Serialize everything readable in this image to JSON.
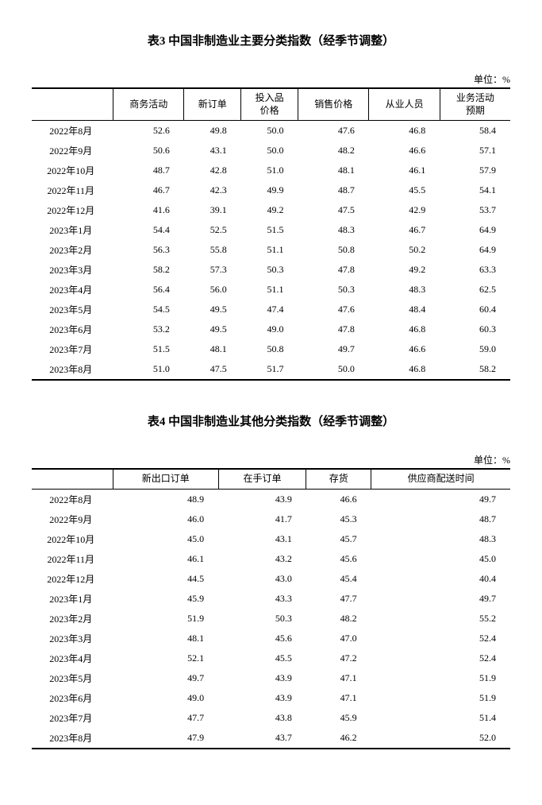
{
  "table3": {
    "caption": "表3 中国非制造业主要分类指数（经季节调整）",
    "unit": "单位：%",
    "columns": [
      "商务活动",
      "新订单",
      "投入品\n价格",
      "销售价格",
      "从业人员",
      "业务活动\n预期"
    ],
    "rows": [
      {
        "label": "2022年8月",
        "v": [
          "52.6",
          "49.8",
          "50.0",
          "47.6",
          "46.8",
          "58.4"
        ]
      },
      {
        "label": "2022年9月",
        "v": [
          "50.6",
          "43.1",
          "50.0",
          "48.2",
          "46.6",
          "57.1"
        ]
      },
      {
        "label": "2022年10月",
        "v": [
          "48.7",
          "42.8",
          "51.0",
          "48.1",
          "46.1",
          "57.9"
        ]
      },
      {
        "label": "2022年11月",
        "v": [
          "46.7",
          "42.3",
          "49.9",
          "48.7",
          "45.5",
          "54.1"
        ]
      },
      {
        "label": "2022年12月",
        "v": [
          "41.6",
          "39.1",
          "49.2",
          "47.5",
          "42.9",
          "53.7"
        ]
      },
      {
        "label": "2023年1月",
        "v": [
          "54.4",
          "52.5",
          "51.5",
          "48.3",
          "46.7",
          "64.9"
        ]
      },
      {
        "label": "2023年2月",
        "v": [
          "56.3",
          "55.8",
          "51.1",
          "50.8",
          "50.2",
          "64.9"
        ]
      },
      {
        "label": "2023年3月",
        "v": [
          "58.2",
          "57.3",
          "50.3",
          "47.8",
          "49.2",
          "63.3"
        ]
      },
      {
        "label": "2023年4月",
        "v": [
          "56.4",
          "56.0",
          "51.1",
          "50.3",
          "48.3",
          "62.5"
        ]
      },
      {
        "label": "2023年5月",
        "v": [
          "54.5",
          "49.5",
          "47.4",
          "47.6",
          "48.4",
          "60.4"
        ]
      },
      {
        "label": "2023年6月",
        "v": [
          "53.2",
          "49.5",
          "49.0",
          "47.8",
          "46.8",
          "60.3"
        ]
      },
      {
        "label": "2023年7月",
        "v": [
          "51.5",
          "48.1",
          "50.8",
          "49.7",
          "46.6",
          "59.0"
        ]
      },
      {
        "label": "2023年8月",
        "v": [
          "51.0",
          "47.5",
          "51.7",
          "50.0",
          "46.8",
          "58.2"
        ]
      }
    ]
  },
  "table4": {
    "caption": "表4 中国非制造业其他分类指数（经季节调整）",
    "unit": "单位：%",
    "columns": [
      "新出口订单",
      "在手订单",
      "存货",
      "供应商配送时间"
    ],
    "rows": [
      {
        "label": "2022年8月",
        "v": [
          "48.9",
          "43.9",
          "46.6",
          "49.7"
        ]
      },
      {
        "label": "2022年9月",
        "v": [
          "46.0",
          "41.7",
          "45.3",
          "48.7"
        ]
      },
      {
        "label": "2022年10月",
        "v": [
          "45.0",
          "43.1",
          "45.7",
          "48.3"
        ]
      },
      {
        "label": "2022年11月",
        "v": [
          "46.1",
          "43.2",
          "45.6",
          "45.0"
        ]
      },
      {
        "label": "2022年12月",
        "v": [
          "44.5",
          "43.0",
          "45.4",
          "40.4"
        ]
      },
      {
        "label": "2023年1月",
        "v": [
          "45.9",
          "43.3",
          "47.7",
          "49.7"
        ]
      },
      {
        "label": "2023年2月",
        "v": [
          "51.9",
          "50.3",
          "48.2",
          "55.2"
        ]
      },
      {
        "label": "2023年3月",
        "v": [
          "48.1",
          "45.6",
          "47.0",
          "52.4"
        ]
      },
      {
        "label": "2023年4月",
        "v": [
          "52.1",
          "45.5",
          "47.2",
          "52.4"
        ]
      },
      {
        "label": "2023年5月",
        "v": [
          "49.7",
          "43.9",
          "47.1",
          "51.9"
        ]
      },
      {
        "label": "2023年6月",
        "v": [
          "49.0",
          "43.9",
          "47.1",
          "51.9"
        ]
      },
      {
        "label": "2023年7月",
        "v": [
          "47.7",
          "43.8",
          "45.9",
          "51.4"
        ]
      },
      {
        "label": "2023年8月",
        "v": [
          "47.9",
          "43.7",
          "46.2",
          "52.0"
        ]
      }
    ]
  }
}
